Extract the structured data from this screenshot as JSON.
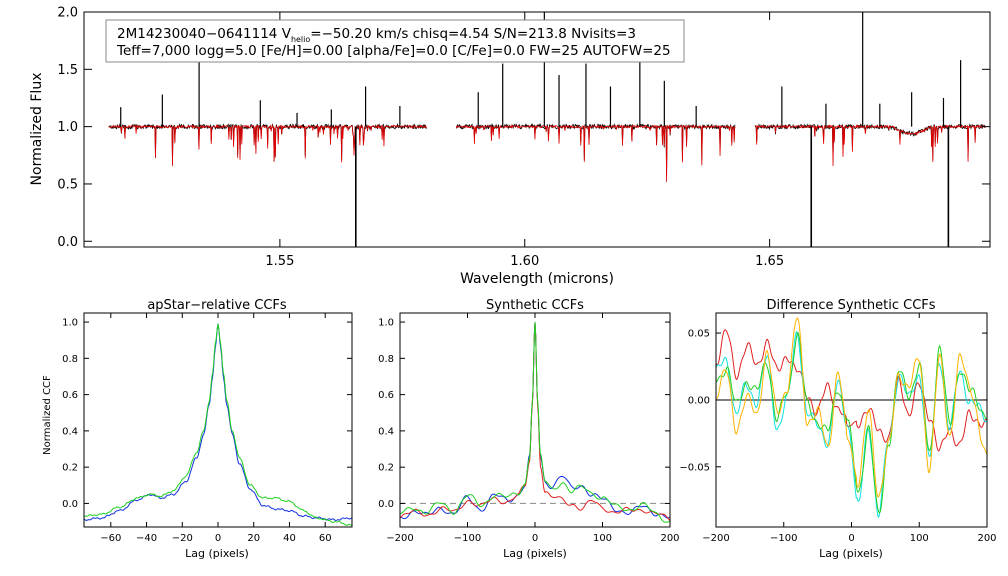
{
  "info": {
    "line1_id": "2M14230040−0641114",
    "line1_v": "V",
    "line1_vsub": "helio",
    "line1_rest": "=−50.20 km/s  chisq=4.54  S/N=213.8  Nvisits=3",
    "line2": "Teff=7,000 logg=5.0 [Fe/H]=0.00 [alpha/Fe]=0.0 [C/Fe]=0.0 FW=25 AUTOFW=25"
  },
  "colors": {
    "observed": "#000000",
    "model": "#e00000",
    "blue": "#1030e0",
    "green": "#20d020",
    "cyan": "#10e0e0",
    "purple": "#b000c0",
    "orange": "#ffb400",
    "red": "#e02020",
    "dashed": "#888888"
  },
  "chart_data": [
    {
      "type": "line",
      "title": "",
      "xlabel": "Wavelength (microns)",
      "ylabel": "Normalized Flux",
      "xlim": [
        1.51,
        1.695
      ],
      "ylim": [
        -0.05,
        2.0
      ],
      "xticks": [
        1.55,
        1.6,
        1.65
      ],
      "xtick_labels": [
        "1.55",
        "1.60",
        "1.65"
      ],
      "yticks": [
        0.0,
        0.5,
        1.0,
        1.5,
        2.0
      ],
      "ytick_labels": [
        "0.0",
        "0.5",
        "1.0",
        "1.5",
        "2.0"
      ],
      "segments": [
        [
          1.515,
          1.58
        ],
        [
          1.586,
          1.643
        ],
        [
          1.647,
          1.694
        ]
      ],
      "continuum": 1.0,
      "emission_spikes": [
        {
          "x": 1.5175,
          "y": 1.17
        },
        {
          "x": 1.526,
          "y": 1.28
        },
        {
          "x": 1.5335,
          "y": 1.58
        },
        {
          "x": 1.546,
          "y": 1.23
        },
        {
          "x": 1.5535,
          "y": 1.12
        },
        {
          "x": 1.5605,
          "y": 1.15
        },
        {
          "x": 1.5675,
          "y": 1.35
        },
        {
          "x": 1.5745,
          "y": 1.18
        },
        {
          "x": 1.5905,
          "y": 1.3
        },
        {
          "x": 1.5955,
          "y": 1.55
        },
        {
          "x": 1.604,
          "y": 2.0
        },
        {
          "x": 1.607,
          "y": 1.45
        },
        {
          "x": 1.6125,
          "y": 1.55
        },
        {
          "x": 1.6175,
          "y": 1.35
        },
        {
          "x": 1.6235,
          "y": 1.62
        },
        {
          "x": 1.6285,
          "y": 1.4
        },
        {
          "x": 1.635,
          "y": 1.18
        },
        {
          "x": 1.6525,
          "y": 1.35
        },
        {
          "x": 1.6615,
          "y": 1.2
        },
        {
          "x": 1.669,
          "y": 2.0
        },
        {
          "x": 1.6725,
          "y": 1.2
        },
        {
          "x": 1.679,
          "y": 1.3
        },
        {
          "x": 1.6855,
          "y": 1.25
        },
        {
          "x": 1.689,
          "y": 1.58
        }
      ],
      "absorption_spikes": [
        {
          "x": 1.5655,
          "y": -0.05
        },
        {
          "x": 1.6585,
          "y": -0.05
        },
        {
          "x": 1.6865,
          "y": -0.05
        }
      ],
      "series": [
        {
          "name": "observed",
          "color_key": "observed"
        },
        {
          "name": "model",
          "color_key": "model"
        }
      ]
    },
    {
      "type": "line",
      "title": "apStar−relative CCFs",
      "xlabel": "Lag (pixels)",
      "ylabel": "Normalized CCF",
      "xlim": [
        -75,
        75
      ],
      "ylim": [
        -0.13,
        1.05
      ],
      "xticks": [
        -60,
        -40,
        -20,
        0,
        20,
        40,
        60
      ],
      "xtick_labels": [
        "−60",
        "−40",
        "−20",
        "0",
        "20",
        "40",
        "60"
      ],
      "yticks": [
        0.0,
        0.2,
        0.4,
        0.6,
        0.8,
        1.0
      ],
      "ytick_labels": [
        "0.0",
        "0.2",
        "0.4",
        "0.6",
        "0.8",
        "1.0"
      ],
      "series": [
        {
          "name": "ccf-blue",
          "color_key": "blue",
          "x": [
            -75,
            -65,
            -55,
            -45,
            -38,
            -32,
            -25,
            -18,
            -12,
            -8,
            -5,
            -3,
            -1.5,
            0,
            1.5,
            3,
            5,
            8,
            12,
            18,
            25,
            32,
            40,
            48,
            55,
            65,
            75
          ],
          "y": [
            -0.09,
            -0.08,
            -0.04,
            0.02,
            0.05,
            0.03,
            0.05,
            0.12,
            0.25,
            0.38,
            0.54,
            0.7,
            0.86,
            0.99,
            0.86,
            0.7,
            0.54,
            0.38,
            0.22,
            0.08,
            -0.01,
            -0.03,
            -0.04,
            -0.07,
            -0.08,
            -0.09,
            -0.08
          ]
        },
        {
          "name": "ccf-green",
          "color_key": "green",
          "x": [
            -75,
            -65,
            -55,
            -45,
            -38,
            -32,
            -25,
            -18,
            -12,
            -8,
            -5,
            -3,
            -1.5,
            0,
            1.5,
            3,
            5,
            8,
            12,
            18,
            25,
            32,
            40,
            48,
            55,
            65,
            75
          ],
          "y": [
            -0.07,
            -0.06,
            -0.02,
            0.03,
            0.05,
            0.04,
            0.07,
            0.15,
            0.28,
            0.4,
            0.56,
            0.72,
            0.88,
            0.99,
            0.88,
            0.72,
            0.56,
            0.4,
            0.25,
            0.1,
            0.03,
            0.03,
            0.01,
            -0.04,
            -0.08,
            -0.1,
            -0.12
          ]
        }
      ]
    },
    {
      "type": "line",
      "title": "Synthetic CCFs",
      "xlabel": "Lag (pixels)",
      "ylabel": "",
      "xlim": [
        -200,
        200
      ],
      "ylim": [
        -0.13,
        1.05
      ],
      "xticks": [
        -200,
        -100,
        0,
        100,
        200
      ],
      "xtick_labels": [
        "−200",
        "−100",
        "0",
        "100",
        "200"
      ],
      "yticks": [
        0.0,
        0.2,
        0.4,
        0.6,
        0.8,
        1.0
      ],
      "ytick_labels": [
        "0.0",
        "0.2",
        "0.4",
        "0.6",
        "0.8",
        "1.0"
      ],
      "reference_line_y": 0.0,
      "series": [
        {
          "name": "syn-blue",
          "color_key": "blue",
          "x": [
            -200,
            -180,
            -160,
            -140,
            -120,
            -100,
            -80,
            -60,
            -40,
            -25,
            -15,
            -8,
            -4,
            0,
            4,
            8,
            15,
            25,
            40,
            55,
            70,
            85,
            100,
            120,
            140,
            160,
            180,
            200
          ],
          "y": [
            -0.08,
            -0.04,
            -0.07,
            -0.02,
            -0.06,
            0.03,
            -0.03,
            0.04,
            0.02,
            0.05,
            0.1,
            0.25,
            0.55,
            1.0,
            0.55,
            0.25,
            0.12,
            0.1,
            0.15,
            0.08,
            0.1,
            0.05,
            0.02,
            -0.03,
            -0.05,
            -0.02,
            -0.05,
            -0.08
          ]
        },
        {
          "name": "syn-red",
          "color_key": "red",
          "x": [
            -200,
            -180,
            -160,
            -140,
            -120,
            -100,
            -80,
            -60,
            -40,
            -25,
            -15,
            -8,
            -4,
            0,
            4,
            8,
            15,
            25,
            40,
            55,
            70,
            85,
            100,
            120,
            140,
            160,
            180,
            200
          ],
          "y": [
            -0.07,
            -0.05,
            -0.06,
            -0.03,
            -0.05,
            0.02,
            -0.02,
            0.03,
            0.01,
            0.04,
            0.09,
            0.24,
            0.54,
            1.0,
            0.54,
            0.22,
            0.06,
            0.03,
            0.02,
            0.0,
            -0.03,
            0.01,
            -0.02,
            -0.05,
            -0.04,
            -0.03,
            -0.06,
            -0.09
          ]
        },
        {
          "name": "syn-green",
          "color_key": "green",
          "x": [
            -200,
            -180,
            -160,
            -140,
            -120,
            -100,
            -80,
            -60,
            -40,
            -25,
            -15,
            -8,
            -4,
            0,
            4,
            8,
            15,
            25,
            40,
            55,
            70,
            85,
            100,
            120,
            140,
            160,
            180,
            200
          ],
          "y": [
            -0.06,
            -0.02,
            -0.05,
            0.0,
            -0.04,
            0.04,
            -0.01,
            0.05,
            0.03,
            0.06,
            0.11,
            0.26,
            0.56,
            1.0,
            0.56,
            0.26,
            0.12,
            0.08,
            0.12,
            0.06,
            0.09,
            0.06,
            0.03,
            -0.02,
            -0.03,
            -0.01,
            -0.06,
            -0.1
          ]
        }
      ]
    },
    {
      "type": "line",
      "title": "Difference Synthetic CCFs",
      "xlabel": "Lag (pixels)",
      "ylabel": "",
      "xlim": [
        -200,
        200
      ],
      "ylim": [
        -0.095,
        0.065
      ],
      "xticks": [
        -200,
        -100,
        0,
        100,
        200
      ],
      "xtick_labels": [
        "−200",
        "−100",
        "0",
        "100",
        "200"
      ],
      "yticks": [
        -0.05,
        0.0,
        0.05
      ],
      "ytick_labels": [
        "−0.05",
        "0.00",
        "0.05"
      ],
      "reference_line_y": 0.0,
      "series": [
        {
          "name": "diff-red",
          "color_key": "red",
          "x": [
            -200,
            -185,
            -170,
            -155,
            -140,
            -125,
            -110,
            -95,
            -80,
            -65,
            -50,
            -35,
            -20,
            -5,
            10,
            25,
            40,
            55,
            70,
            85,
            100,
            115,
            130,
            145,
            160,
            175,
            200
          ],
          "y": [
            0.03,
            0.05,
            0.02,
            0.04,
            0.025,
            0.045,
            0.02,
            0.035,
            0.02,
            0.005,
            -0.01,
            0.01,
            -0.005,
            -0.02,
            -0.015,
            -0.01,
            -0.02,
            -0.03,
            0.015,
            -0.01,
            0.01,
            -0.01,
            -0.04,
            -0.02,
            -0.035,
            -0.01,
            -0.02
          ]
        },
        {
          "name": "diff-cyan",
          "color_key": "cyan",
          "x": [
            -200,
            -185,
            -170,
            -155,
            -140,
            -125,
            -110,
            -95,
            -80,
            -65,
            -50,
            -35,
            -20,
            -5,
            10,
            25,
            40,
            55,
            70,
            85,
            100,
            115,
            130,
            145,
            160,
            175,
            200
          ],
          "y": [
            0.02,
            0.03,
            -0.01,
            0.01,
            0.0,
            0.03,
            -0.02,
            0.0,
            0.05,
            -0.01,
            -0.02,
            -0.03,
            0.01,
            -0.02,
            -0.08,
            -0.02,
            -0.085,
            -0.03,
            0.02,
            0.0,
            0.02,
            -0.045,
            0.03,
            -0.02,
            0.02,
            0.0,
            -0.015
          ]
        },
        {
          "name": "diff-green",
          "color_key": "green",
          "x": [
            -200,
            -185,
            -170,
            -155,
            -140,
            -125,
            -110,
            -95,
            -80,
            -65,
            -50,
            -35,
            -20,
            -5,
            10,
            25,
            40,
            55,
            70,
            85,
            100,
            115,
            130,
            145,
            160,
            175,
            200
          ],
          "y": [
            0.015,
            0.025,
            -0.005,
            0.015,
            0.005,
            0.03,
            -0.015,
            0.005,
            0.05,
            -0.005,
            -0.015,
            -0.025,
            0.01,
            -0.015,
            -0.07,
            -0.02,
            -0.088,
            -0.03,
            0.02,
            0.005,
            0.025,
            -0.04,
            0.04,
            -0.02,
            0.025,
            0.005,
            -0.01
          ]
        },
        {
          "name": "diff-orange",
          "color_key": "orange",
          "x": [
            -200,
            -185,
            -170,
            -155,
            -140,
            -125,
            -110,
            -95,
            -80,
            -65,
            -50,
            -35,
            -20,
            -5,
            10,
            25,
            40,
            55,
            70,
            85,
            100,
            115,
            130,
            145,
            160,
            175,
            200
          ],
          "y": [
            0.005,
            0.02,
            -0.02,
            0.0,
            -0.01,
            0.035,
            -0.01,
            0.01,
            0.06,
            -0.015,
            -0.01,
            -0.035,
            0.02,
            -0.03,
            -0.06,
            -0.01,
            -0.07,
            -0.035,
            0.02,
            0.01,
            0.03,
            -0.05,
            0.03,
            -0.025,
            0.03,
            0.01,
            -0.045
          ]
        }
      ]
    }
  ]
}
